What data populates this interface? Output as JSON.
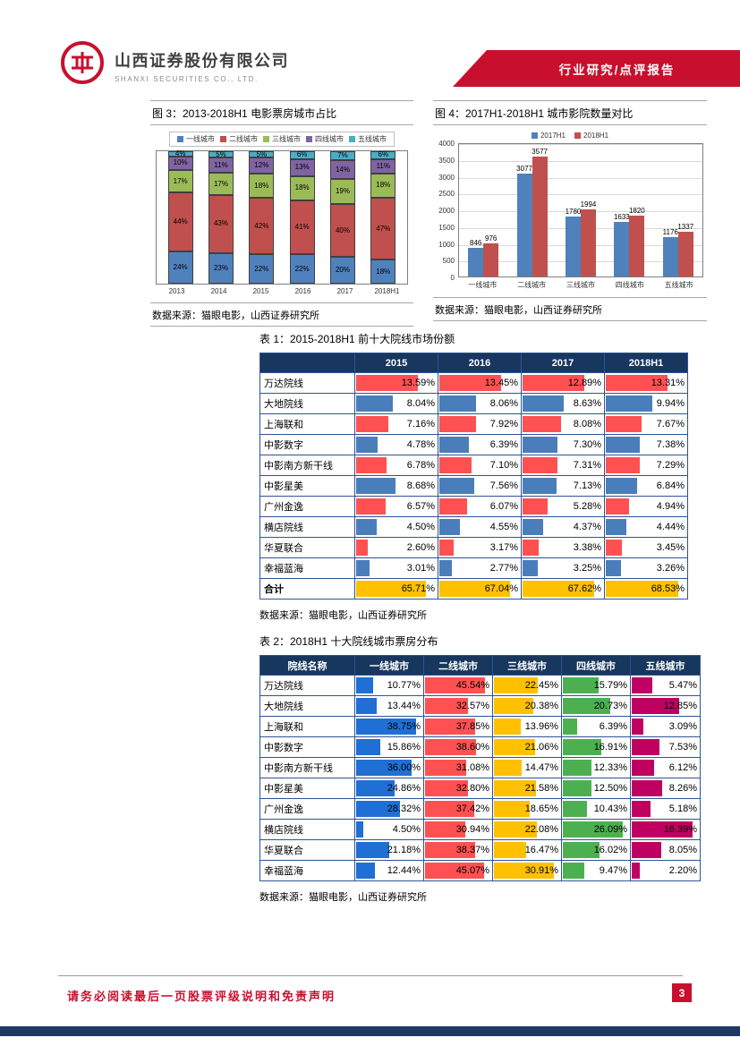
{
  "header": {
    "company_cn": "山西证券股份有限公司",
    "company_en": "SHANXI SECURITIES CO., LTD.",
    "banner": "行业研究/点评报告"
  },
  "chart_data": [
    {
      "type": "bar",
      "stacked": true,
      "percent": true,
      "title": "图 3：2013-2018H1 电影票房城市占比",
      "source": "数据来源：猫眼电影，山西证券研究所",
      "categories": [
        "2013",
        "2014",
        "2015",
        "2016",
        "2017",
        "2018H1"
      ],
      "series": [
        {
          "name": "一线城市",
          "color": "#4F81BD",
          "values": [
            24,
            23,
            22,
            22,
            20,
            18
          ]
        },
        {
          "name": "二线城市",
          "color": "#C0504D",
          "values": [
            44,
            43,
            42,
            41,
            40,
            47
          ]
        },
        {
          "name": "三线城市",
          "color": "#9BBB59",
          "values": [
            17,
            17,
            18,
            18,
            19,
            18
          ]
        },
        {
          "name": "四线城市",
          "color": "#8064A2",
          "values": [
            10,
            11,
            12,
            13,
            14,
            11
          ]
        },
        {
          "name": "五线城市",
          "color": "#4BACC6",
          "values": [
            4,
            5,
            5,
            6,
            7,
            6
          ]
        }
      ],
      "legend_position": "top",
      "ylim": [
        0,
        100
      ],
      "grid": false
    },
    {
      "type": "bar",
      "stacked": false,
      "title": "图 4：2017H1-2018H1 城市影院数量对比",
      "source": "数据来源：猫眼电影，山西证券研究所",
      "categories": [
        "一线城市",
        "二线城市",
        "三线城市",
        "四线城市",
        "五线城市"
      ],
      "series": [
        {
          "name": "2017H1",
          "color": "#4F81BD",
          "values": [
            846,
            3077,
            1780,
            1633,
            1176
          ]
        },
        {
          "name": "2018H1",
          "color": "#C0504D",
          "values": [
            976,
            3577,
            1994,
            1820,
            1337
          ]
        }
      ],
      "legend_position": "top",
      "ylim": [
        0,
        4000
      ],
      "ytick_step": 500,
      "grid": true
    }
  ],
  "table1": {
    "caption": "表 1：2015-2018H1 前十大院线市场份额",
    "source": "数据来源：猫眼电影，山西证券研究所",
    "columns": [
      "",
      "2015",
      "2016",
      "2017",
      "2018H1"
    ],
    "rows": [
      {
        "name": "万达院线",
        "bar_color": "#FF5151",
        "values": [
          13.59,
          13.45,
          12.89,
          13.31
        ]
      },
      {
        "name": "大地院线",
        "bar_color": "#4A7EBB",
        "values": [
          8.04,
          8.06,
          8.63,
          9.94
        ]
      },
      {
        "name": "上海联和",
        "bar_color": "#FF5151",
        "values": [
          7.16,
          7.92,
          8.08,
          7.67
        ]
      },
      {
        "name": "中影数字",
        "bar_color": "#4A7EBB",
        "values": [
          4.78,
          6.39,
          7.3,
          7.38
        ]
      },
      {
        "name": "中影南方新干线",
        "bar_color": "#FF5151",
        "values": [
          6.78,
          7.1,
          7.31,
          7.29
        ]
      },
      {
        "name": "中影星美",
        "bar_color": "#4A7EBB",
        "values": [
          8.68,
          7.56,
          7.13,
          6.84
        ]
      },
      {
        "name": "广州金逸",
        "bar_color": "#FF5151",
        "values": [
          6.57,
          6.07,
          5.28,
          4.94
        ]
      },
      {
        "name": "横店院线",
        "bar_color": "#4A7EBB",
        "values": [
          4.5,
          4.55,
          4.37,
          4.44
        ]
      },
      {
        "name": "华夏联合",
        "bar_color": "#FF5151",
        "values": [
          2.6,
          3.17,
          3.38,
          3.45
        ]
      },
      {
        "name": "幸福蓝海",
        "bar_color": "#4A7EBB",
        "values": [
          3.01,
          2.77,
          3.25,
          3.26
        ]
      }
    ],
    "total_row": {
      "name": "合计",
      "bar_color": "#FFC000",
      "values": [
        65.71,
        67.04,
        67.62,
        68.53
      ]
    }
  },
  "table2": {
    "caption": "表 2：2018H1 十大院线城市票房分布",
    "source": "数据来源：猫眼电影，山西证券研究所",
    "columns": [
      "院线名称",
      "一线城市",
      "二线城市",
      "三线城市",
      "四线城市",
      "五线城市"
    ],
    "column_bar_colors": [
      "#1F6FD5",
      "#FF5151",
      "#FFC000",
      "#4CB050",
      "#C00060"
    ],
    "rows": [
      {
        "name": "万达院线",
        "values": [
          10.77,
          45.54,
          22.45,
          15.79,
          5.47
        ]
      },
      {
        "name": "大地院线",
        "values": [
          13.44,
          32.57,
          20.38,
          20.73,
          12.85
        ]
      },
      {
        "name": "上海联和",
        "values": [
          38.75,
          37.85,
          13.96,
          6.39,
          3.09
        ]
      },
      {
        "name": "中影数字",
        "values": [
          15.86,
          38.6,
          21.06,
          16.91,
          7.53
        ]
      },
      {
        "name": "中影南方新干线",
        "values": [
          36.0,
          31.08,
          14.47,
          12.33,
          6.12
        ]
      },
      {
        "name": "中影星美",
        "values": [
          24.86,
          32.8,
          21.58,
          12.5,
          8.26
        ]
      },
      {
        "name": "广州金逸",
        "values": [
          28.32,
          37.42,
          18.65,
          10.43,
          5.18
        ]
      },
      {
        "name": "横店院线",
        "values": [
          4.5,
          30.94,
          22.08,
          26.09,
          16.39
        ]
      },
      {
        "name": "华夏联合",
        "values": [
          21.18,
          38.37,
          16.47,
          16.02,
          8.05
        ]
      },
      {
        "name": "幸福蓝海",
        "values": [
          12.44,
          45.07,
          30.91,
          9.47,
          2.2
        ]
      }
    ]
  },
  "footer": {
    "disclaimer": "请务必阅读最后一页股票评级说明和免责声明",
    "page_number": "3"
  },
  "colors": {
    "banner_red": "#C8102E",
    "navy_header": "#17375E",
    "table_border": "#2E5395",
    "bottom_bar": "#1F3864"
  }
}
